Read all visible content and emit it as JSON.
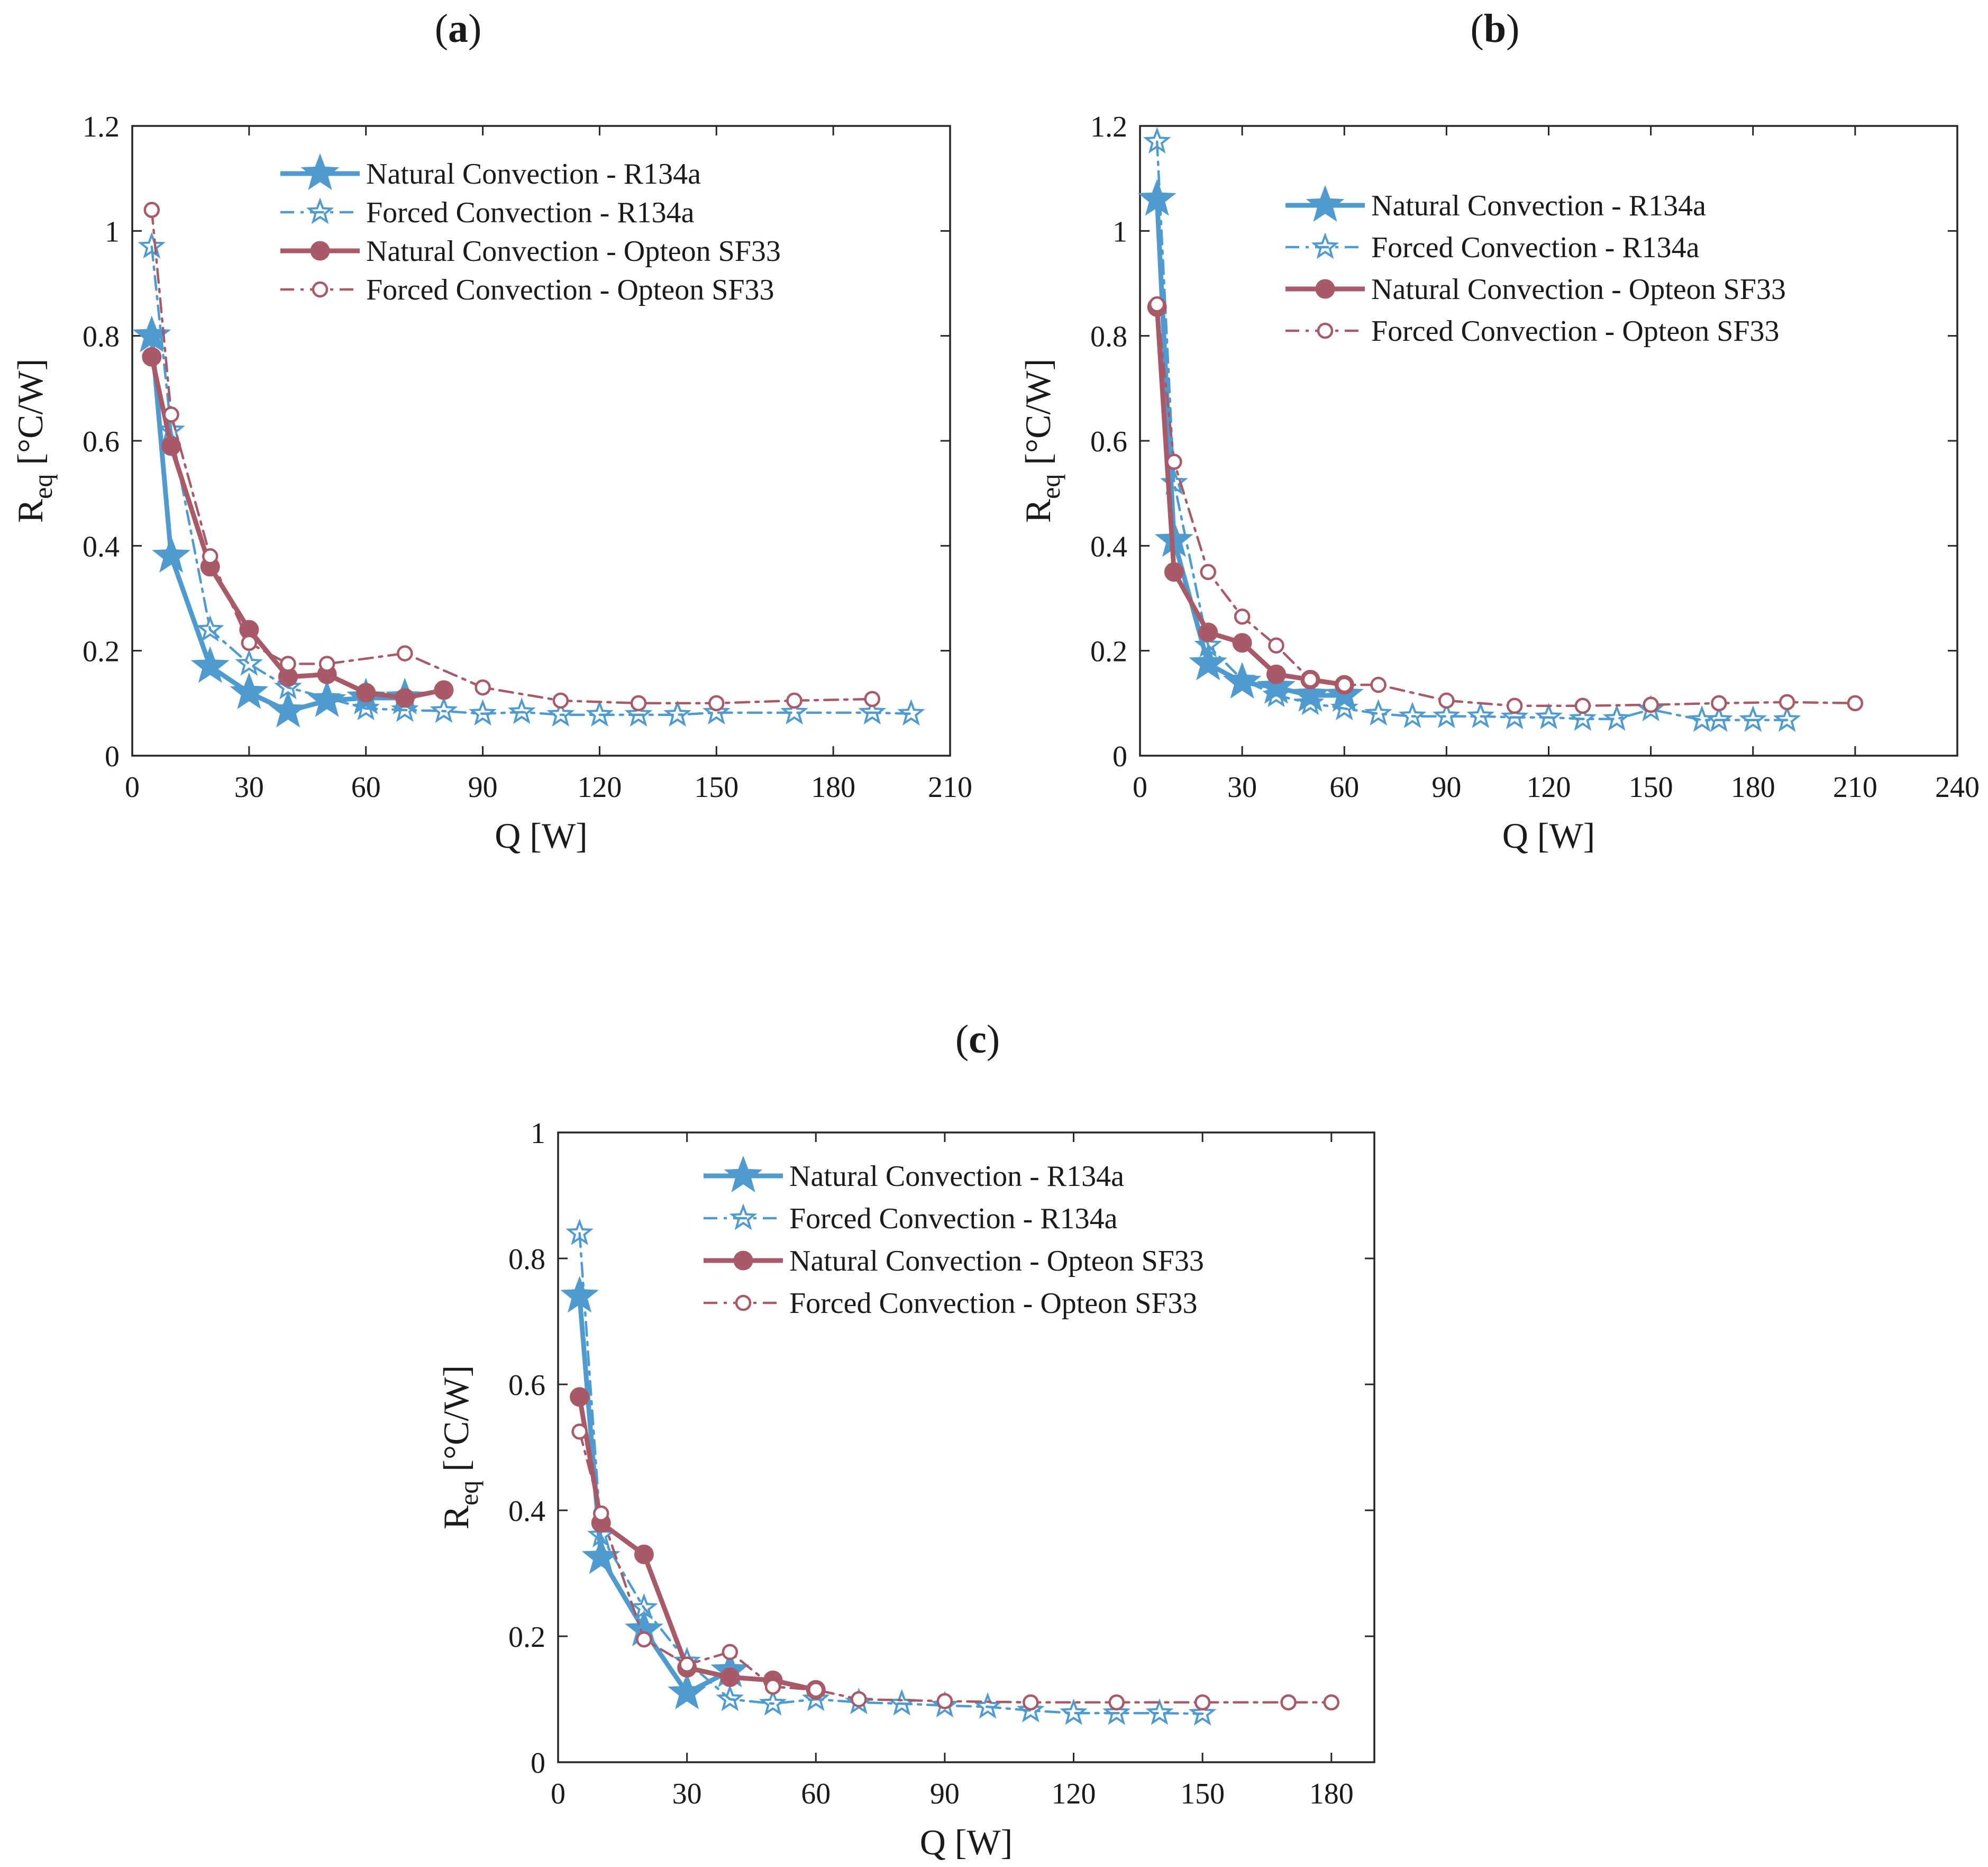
{
  "colors": {
    "blue": "#4f9bcf",
    "red": "#a85a68",
    "axis": "#262626"
  },
  "legend_labels": [
    "Natural Convection - R134a",
    "Forced Convection - R134a",
    "Natural Convection - Opteon SF33",
    "Forced Convection - Opteon SF33"
  ],
  "chart_data": [
    {
      "id": "a",
      "type": "line",
      "panel_label": "(a)",
      "xlabel": "Q [W]",
      "ylabel": "R_eq [°C/W]",
      "xlim": [
        0,
        210
      ],
      "ylim": [
        0,
        1.2
      ],
      "xticks": [
        0,
        30,
        60,
        90,
        120,
        150,
        180,
        210
      ],
      "yticks": [
        0,
        0.2,
        0.4,
        0.6,
        0.8,
        1,
        1.2
      ],
      "xtick_labels": [
        "0",
        "30",
        "60",
        "90",
        "120",
        "150",
        "180",
        "210"
      ],
      "ytick_labels": [
        "0",
        "0.2",
        "0.4",
        "0.6",
        "0.8",
        "1",
        "1.2"
      ],
      "legend_position": "top-center",
      "series": [
        {
          "name": "Natural Convection - R134a",
          "style": "natural-r134a",
          "x": [
            5,
            10,
            20,
            30,
            40,
            50,
            60,
            70
          ],
          "y": [
            0.8,
            0.38,
            0.17,
            0.12,
            0.085,
            0.105,
            0.11,
            0.11
          ]
        },
        {
          "name": "Forced Convection - R134a",
          "style": "forced-r134a",
          "x": [
            5,
            10,
            20,
            30,
            40,
            50,
            60,
            70,
            80,
            90,
            100,
            110,
            120,
            130,
            140,
            150,
            170,
            190,
            200
          ],
          "y": [
            0.97,
            0.62,
            0.24,
            0.175,
            0.13,
            0.11,
            0.09,
            0.087,
            0.085,
            0.08,
            0.083,
            0.078,
            0.078,
            0.078,
            0.078,
            0.082,
            0.082,
            0.082,
            0.08
          ]
        },
        {
          "name": "Natural Convection - Opteon SF33",
          "style": "natural-sf33",
          "x": [
            5,
            10,
            20,
            30,
            40,
            50,
            60,
            70,
            80
          ],
          "y": [
            0.76,
            0.59,
            0.36,
            0.24,
            0.15,
            0.155,
            0.12,
            0.11,
            0.125
          ]
        },
        {
          "name": "Forced Convection - Opteon SF33",
          "style": "forced-sf33",
          "x": [
            5,
            10,
            20,
            30,
            40,
            50,
            70,
            90,
            110,
            130,
            150,
            170,
            190
          ],
          "y": [
            1.04,
            0.65,
            0.38,
            0.215,
            0.175,
            0.175,
            0.195,
            0.13,
            0.105,
            0.1,
            0.1,
            0.105,
            0.108
          ]
        }
      ]
    },
    {
      "id": "b",
      "type": "line",
      "panel_label": "(b)",
      "xlabel": "Q [W]",
      "ylabel": "R_eq [°C/W]",
      "xlim": [
        0,
        240
      ],
      "ylim": [
        0,
        1.2
      ],
      "xticks": [
        0,
        30,
        60,
        90,
        120,
        150,
        180,
        210,
        240
      ],
      "yticks": [
        0,
        0.2,
        0.4,
        0.6,
        0.8,
        1,
        1.2
      ],
      "xtick_labels": [
        "0",
        "30",
        "60",
        "90",
        "120",
        "150",
        "180",
        "210",
        "240"
      ],
      "ytick_labels": [
        "0",
        "0.2",
        "0.4",
        "0.6",
        "0.8",
        "1",
        "1.2"
      ],
      "legend_position": "top-center",
      "series": [
        {
          "name": "Natural Convection - R134a",
          "style": "natural-r134a",
          "x": [
            5,
            10,
            20,
            30,
            40,
            50,
            60
          ],
          "y": [
            1.06,
            0.41,
            0.175,
            0.14,
            0.13,
            0.115,
            0.115
          ]
        },
        {
          "name": "Forced Convection - R134a",
          "style": "forced-r134a",
          "x": [
            5,
            10,
            20,
            30,
            40,
            50,
            60,
            70,
            80,
            90,
            100,
            110,
            120,
            130,
            140,
            150,
            165,
            170,
            180,
            190
          ],
          "y": [
            1.17,
            0.52,
            0.21,
            0.145,
            0.115,
            0.1,
            0.09,
            0.08,
            0.075,
            0.075,
            0.075,
            0.073,
            0.073,
            0.07,
            0.07,
            0.088,
            0.068,
            0.068,
            0.068,
            0.068
          ]
        },
        {
          "name": "Natural Convection - Opteon SF33",
          "style": "natural-sf33",
          "x": [
            5,
            10,
            20,
            30,
            40,
            50,
            60
          ],
          "y": [
            0.855,
            0.35,
            0.235,
            0.215,
            0.155,
            0.145,
            0.135
          ]
        },
        {
          "name": "Forced Convection - Opteon SF33",
          "style": "forced-sf33",
          "x": [
            5,
            10,
            20,
            30,
            40,
            50,
            60,
            70,
            90,
            110,
            130,
            150,
            170,
            190,
            210
          ],
          "y": [
            0.86,
            0.56,
            0.35,
            0.265,
            0.21,
            0.145,
            0.135,
            0.135,
            0.105,
            0.095,
            0.095,
            0.097,
            0.1,
            0.102,
            0.1
          ]
        }
      ]
    },
    {
      "id": "c",
      "type": "line",
      "panel_label": "(c)",
      "xlabel": "Q [W]",
      "ylabel": "R_eq [°C/W]",
      "xlim": [
        0,
        190
      ],
      "ylim": [
        0,
        1
      ],
      "xticks": [
        0,
        30,
        60,
        90,
        120,
        150,
        180
      ],
      "yticks": [
        0,
        0.2,
        0.4,
        0.6,
        0.8,
        1
      ],
      "xtick_labels": [
        "0",
        "30",
        "60",
        "90",
        "120",
        "150",
        "180"
      ],
      "ytick_labels": [
        "0",
        "0.2",
        "0.4",
        "0.6",
        "0.8",
        "1"
      ],
      "legend_position": "top-center",
      "series": [
        {
          "name": "Natural Convection - R134a",
          "style": "natural-r134a",
          "x": [
            5,
            10,
            20,
            30,
            40
          ],
          "y": [
            0.74,
            0.325,
            0.21,
            0.11,
            0.145
          ]
        },
        {
          "name": "Forced Convection - R134a",
          "style": "forced-r134a",
          "x": [
            5,
            10,
            20,
            30,
            40,
            50,
            60,
            70,
            80,
            90,
            100,
            110,
            120,
            130,
            140,
            150
          ],
          "y": [
            0.84,
            0.36,
            0.245,
            0.16,
            0.1,
            0.093,
            0.1,
            0.095,
            0.093,
            0.09,
            0.088,
            0.082,
            0.078,
            0.078,
            0.078,
            0.077
          ]
        },
        {
          "name": "Natural Convection - Opteon SF33",
          "style": "natural-sf33",
          "x": [
            5,
            10,
            20,
            30,
            40,
            50,
            60
          ],
          "y": [
            0.58,
            0.38,
            0.33,
            0.15,
            0.135,
            0.13,
            0.115
          ]
        },
        {
          "name": "Forced Convection - Opteon SF33",
          "style": "forced-sf33",
          "x": [
            5,
            10,
            20,
            30,
            40,
            50,
            60,
            70,
            90,
            110,
            130,
            150,
            170,
            180
          ],
          "y": [
            0.525,
            0.395,
            0.195,
            0.155,
            0.175,
            0.12,
            0.115,
            0.1,
            0.097,
            0.095,
            0.095,
            0.095,
            0.095,
            0.095
          ]
        }
      ]
    }
  ]
}
